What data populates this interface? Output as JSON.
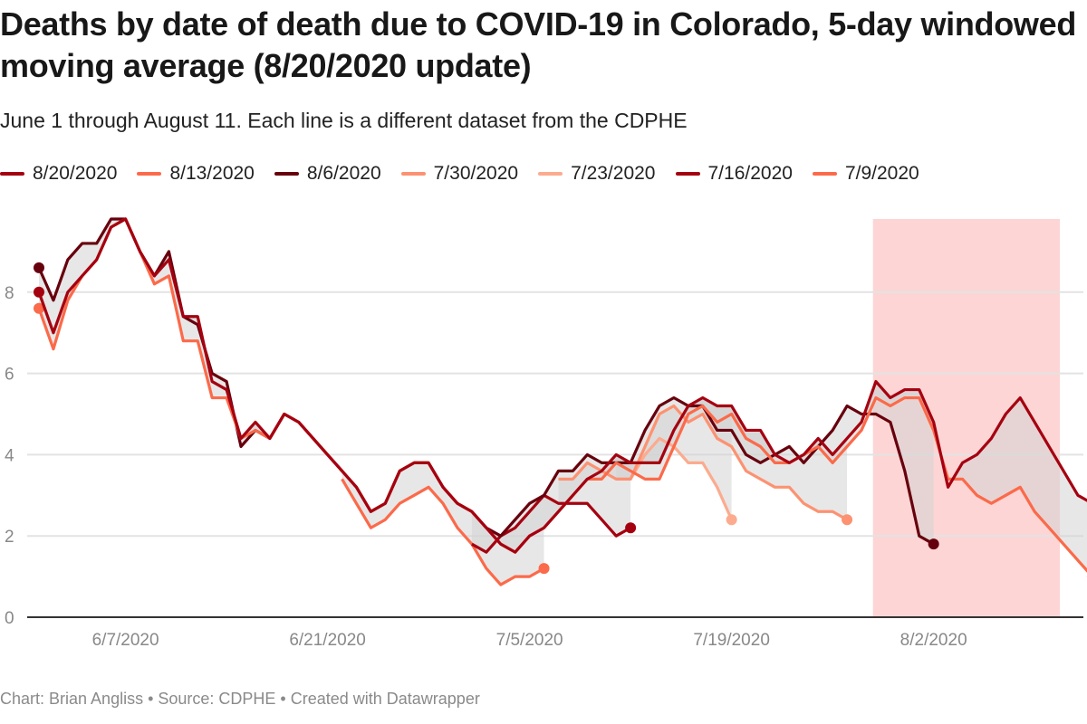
{
  "header": {
    "title": "Deaths by date of death due to COVID-19 in Colorado, 5-day windowed moving average (8/20/2020 update)",
    "subtitle": "June 1 through August 11. Each line is a different dataset from the CDPHE"
  },
  "footer": {
    "text": "Chart: Brian Angliss • Source: CDPHE • Created with Datawrapper"
  },
  "chart_data": {
    "type": "line",
    "title": "Deaths by date of death due to COVID-19 in Colorado, 5-day windowed moving average (8/20/2020 update)",
    "xlabel": "",
    "ylabel": "",
    "x_start": "6/1/2020",
    "x_end": "8/11/2020",
    "ylim": [
      0,
      9.8
    ],
    "yticks": [
      0,
      2,
      4,
      6,
      8
    ],
    "xticks": [
      {
        "day_index": 6,
        "label": "6/7/2020"
      },
      {
        "day_index": 20,
        "label": "6/21/2020"
      },
      {
        "day_index": 34,
        "label": "7/5/2020"
      },
      {
        "day_index": 48,
        "label": "7/19/2020"
      },
      {
        "day_index": 62,
        "label": "8/2/2020"
      }
    ],
    "grid": true,
    "legend_position": "top",
    "highlight_range": {
      "start_day_index": 57.8,
      "end_day_index": 70.75,
      "color": "#fdd5d5"
    },
    "shade_color": "#d4d4d4",
    "series": [
      {
        "name": "8/20/2020",
        "color": "#a50010",
        "values": [
          8.0,
          7.0,
          8.0,
          8.4,
          8.8,
          9.6,
          9.8,
          9.0,
          8.4,
          8.8,
          7.4,
          7.4,
          5.8,
          5.6,
          4.4,
          4.8,
          4.4,
          5.0,
          4.8,
          4.4,
          4.0,
          3.6,
          3.2,
          2.6,
          2.8,
          3.6,
          3.8,
          3.8,
          3.2,
          2.8,
          2.6,
          2.2,
          1.8,
          1.6,
          2.0,
          2.2,
          2.6,
          3.0,
          3.4,
          3.6,
          4.0,
          3.8,
          3.8,
          3.8,
          4.6,
          5.2,
          5.4,
          5.2,
          5.2,
          4.6,
          4.6,
          4.0,
          3.8,
          4.0,
          4.4,
          4.0,
          4.4,
          4.8,
          5.8,
          5.4,
          5.6,
          5.6,
          4.8,
          3.2,
          3.8,
          4.0,
          4.4,
          5.0,
          5.4,
          4.8,
          4.2,
          3.6,
          3.0,
          2.8,
          2.8
        ]
      },
      {
        "name": "8/13/2020",
        "color": "#fb6a4a",
        "values": [
          7.6,
          6.6,
          7.8,
          8.4,
          8.8,
          9.6,
          9.8,
          9.0,
          8.2,
          8.4,
          6.8,
          6.8,
          5.4,
          5.4,
          4.4,
          4.6,
          4.4,
          5.0,
          4.8,
          4.4,
          4.0,
          3.6,
          3.2,
          2.6,
          2.8,
          3.6,
          3.8,
          3.8,
          3.2,
          2.8,
          2.6,
          2.2,
          1.8,
          1.6,
          2.0,
          2.2,
          2.6,
          3.0,
          3.4,
          3.4,
          3.8,
          3.6,
          3.4,
          3.4,
          4.2,
          5.0,
          5.2,
          4.8,
          5.0,
          4.4,
          4.2,
          3.8,
          3.8,
          4.0,
          4.2,
          3.8,
          4.2,
          4.6,
          5.4,
          5.2,
          5.4,
          5.4,
          4.6,
          3.4,
          3.4,
          3.0,
          2.8,
          3.0,
          3.2,
          2.6,
          2.2,
          1.8,
          1.4,
          1.0
        ]
      },
      {
        "name": "8/6/2020",
        "color": "#67000d",
        "values": [
          8.6,
          7.8,
          8.8,
          9.2,
          9.2,
          9.8,
          9.8,
          9.0,
          8.4,
          9.0,
          7.4,
          7.2,
          6.0,
          5.8,
          4.2,
          4.6,
          4.4,
          5.0,
          4.8,
          4.4,
          4.0,
          3.6,
          3.2,
          2.6,
          2.8,
          3.6,
          3.8,
          3.8,
          3.2,
          2.8,
          2.6,
          2.2,
          2.0,
          2.4,
          2.8,
          3.0,
          3.6,
          3.6,
          4.0,
          3.8,
          3.8,
          3.8,
          4.6,
          5.2,
          5.4,
          5.2,
          5.2,
          4.6,
          4.6,
          4.0,
          3.8,
          4.0,
          4.2,
          3.8,
          4.2,
          4.6,
          5.2,
          5.0,
          5.0,
          4.8,
          3.6,
          2.0,
          1.8
        ]
      },
      {
        "name": "7/30/2020",
        "color": "#fc9272",
        "values": [
          null,
          null,
          null,
          null,
          null,
          null,
          null,
          null,
          null,
          null,
          null,
          null,
          null,
          null,
          null,
          null,
          null,
          null,
          null,
          null,
          null,
          null,
          null,
          null,
          null,
          null,
          null,
          null,
          null,
          null,
          null,
          null,
          null,
          null,
          null,
          null,
          3.4,
          3.4,
          3.8,
          3.6,
          3.4,
          3.4,
          4.2,
          5.0,
          5.2,
          4.8,
          5.0,
          4.4,
          4.2,
          3.6,
          3.4,
          3.2,
          3.2,
          2.8,
          2.6,
          2.6,
          2.4
        ]
      },
      {
        "name": "7/23/2020",
        "color": "#fcab8f",
        "values": [
          null,
          null,
          null,
          null,
          null,
          null,
          null,
          null,
          null,
          null,
          null,
          null,
          null,
          null,
          null,
          null,
          null,
          null,
          null,
          null,
          null,
          null,
          null,
          null,
          null,
          null,
          null,
          null,
          null,
          null,
          null,
          null,
          null,
          null,
          null,
          null,
          null,
          null,
          null,
          null,
          3.4,
          3.4,
          4.0,
          4.4,
          4.2,
          3.8,
          3.8,
          3.2,
          2.4
        ]
      },
      {
        "name": "7/16/2020",
        "color": "#a50010",
        "values": [
          null,
          null,
          null,
          null,
          null,
          null,
          null,
          null,
          null,
          null,
          null,
          null,
          null,
          null,
          null,
          null,
          null,
          null,
          null,
          null,
          null,
          null,
          null,
          null,
          null,
          null,
          null,
          null,
          null,
          null,
          1.8,
          1.6,
          2.0,
          2.2,
          2.6,
          3.0,
          2.8,
          2.8,
          2.8,
          2.4,
          2.0,
          2.2
        ]
      },
      {
        "name": "7/9/2020",
        "color": "#fb6a4a",
        "values": [
          null,
          null,
          null,
          null,
          null,
          null,
          null,
          null,
          null,
          null,
          null,
          null,
          null,
          null,
          null,
          null,
          null,
          null,
          null,
          null,
          null,
          3.4,
          2.8,
          2.2,
          2.4,
          2.8,
          3.0,
          3.2,
          2.8,
          2.2,
          1.8,
          1.2,
          0.8,
          1.0,
          1.0,
          1.2
        ]
      }
    ]
  }
}
